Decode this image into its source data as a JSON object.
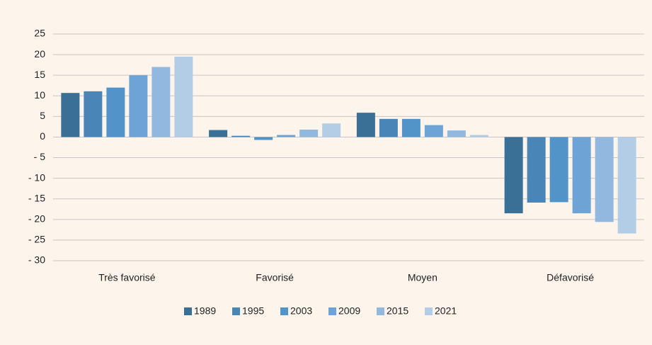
{
  "chart_data": {
    "type": "bar",
    "categories": [
      "Très favorisé",
      "Favorisé",
      "Moyen",
      "Défavorisé"
    ],
    "series": [
      {
        "name": "1989",
        "color": "#3a6f96",
        "values": [
          10.7,
          1.7,
          5.9,
          -18.5
        ]
      },
      {
        "name": "1995",
        "color": "#4a85b7",
        "values": [
          11.1,
          0.3,
          4.4,
          -15.9
        ]
      },
      {
        "name": "2003",
        "color": "#5294c8",
        "values": [
          12.0,
          -0.7,
          4.4,
          -15.8
        ]
      },
      {
        "name": "2009",
        "color": "#6ea3d6",
        "values": [
          15.0,
          0.5,
          2.9,
          -18.5
        ]
      },
      {
        "name": "2015",
        "color": "#93b8df",
        "values": [
          17.0,
          1.8,
          1.6,
          -20.6
        ]
      },
      {
        "name": "2021",
        "color": "#b4cde6",
        "values": [
          19.5,
          3.3,
          0.5,
          -23.4
        ]
      }
    ],
    "ylim": [
      -30,
      25
    ],
    "yticks": [
      {
        "value": -30,
        "label": "- 30"
      },
      {
        "value": -25,
        "label": "- 25"
      },
      {
        "value": -20,
        "label": "- 20"
      },
      {
        "value": -15,
        "label": "- 15"
      },
      {
        "value": -10,
        "label": "- 10"
      },
      {
        "value": -5,
        "label": "- 5"
      },
      0,
      5,
      10,
      15,
      20,
      25
    ],
    "grid": true,
    "legend": "bottom"
  }
}
